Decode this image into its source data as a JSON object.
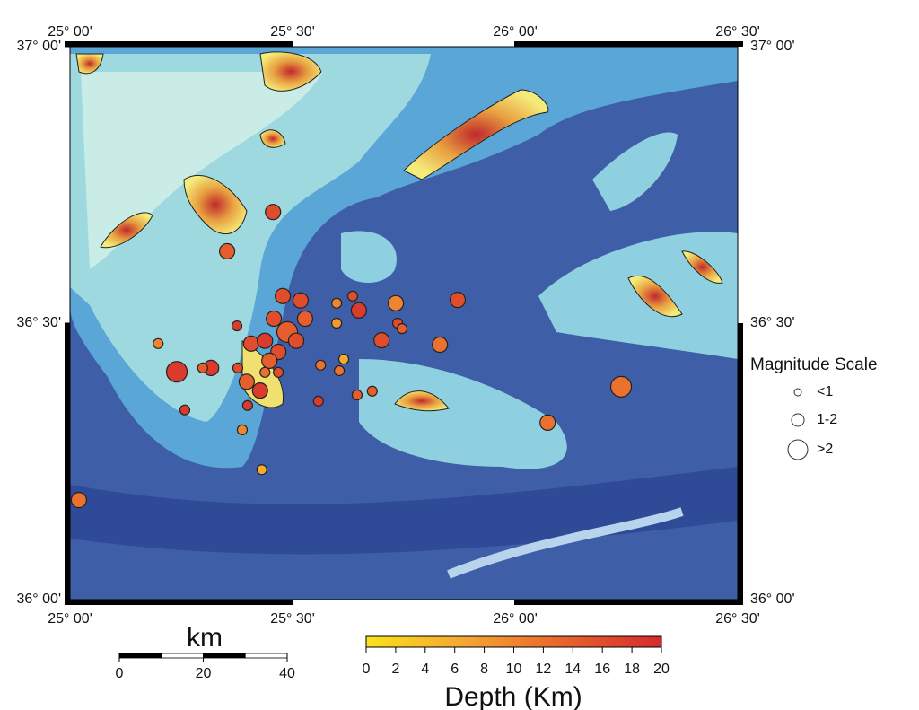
{
  "map": {
    "xlim": [
      25,
      26.5
    ],
    "ylim": [
      36,
      37
    ],
    "xticks": [
      {
        "value": 25,
        "label": "25° 00'"
      },
      {
        "value": 25.5,
        "label": "25° 30'"
      },
      {
        "value": 26,
        "label": "26° 00'"
      },
      {
        "value": 26.5,
        "label": "26° 30'"
      }
    ],
    "yticks": [
      {
        "value": 37,
        "label": "37° 00'"
      },
      {
        "value": 36.5,
        "label": "36° 30'"
      },
      {
        "value": 36,
        "label": "36° 00'"
      }
    ],
    "events": {
      "lon": [
        25.456,
        25.353,
        25.198,
        25.24,
        25.317,
        25.298,
        25.258,
        25.387,
        25.431,
        25.02,
        25.375,
        25.407,
        25.377,
        25.397,
        25.427,
        25.399,
        25.488,
        25.458,
        25.438,
        25.468,
        25.448,
        25.438,
        25.468,
        25.518,
        25.528,
        25.508,
        25.558,
        25.563,
        25.599,
        25.599,
        25.615,
        25.605,
        25.635,
        25.649,
        25.645,
        25.679,
        25.7,
        25.732,
        25.736,
        25.746,
        25.831,
        25.871,
        26.073,
        26.238,
        25.478
      ],
      "lat": [
        36.701,
        36.63,
        36.463,
        36.412,
        36.419,
        36.419,
        36.343,
        36.307,
        36.235,
        36.18,
        36.495,
        36.463,
        36.419,
        36.394,
        36.378,
        36.351,
        36.484,
        36.508,
        36.468,
        36.448,
        36.432,
        36.411,
        36.411,
        36.541,
        36.508,
        36.468,
        36.359,
        36.424,
        36.536,
        36.5,
        36.435,
        36.414,
        36.549,
        36.523,
        36.37,
        36.377,
        36.469,
        36.536,
        36.5,
        36.49,
        36.461,
        36.542,
        36.32,
        36.385,
        36.549
      ],
      "depth": [
        16,
        14,
        10,
        18,
        18,
        14,
        18,
        10,
        6,
        12,
        18,
        16,
        16,
        14,
        18,
        18,
        14,
        16,
        18,
        16,
        14,
        12,
        16,
        16,
        14,
        16,
        18,
        12,
        10,
        8,
        6,
        12,
        16,
        18,
        14,
        14,
        16,
        10,
        16,
        14,
        12,
        16,
        12,
        12,
        16
      ],
      "magnitude": [
        1.5,
        1.5,
        0.5,
        2.5,
        1.5,
        0.5,
        0.5,
        0.5,
        0.5,
        1.5,
        0.5,
        1.5,
        0.5,
        1.5,
        1.5,
        0.5,
        2.5,
        1.5,
        1.5,
        1.5,
        1.5,
        0.5,
        0.5,
        1.5,
        1.5,
        1.5,
        0.5,
        0.5,
        0.5,
        0.5,
        0.5,
        0.5,
        0.5,
        1.5,
        0.5,
        0.5,
        1.5,
        1.5,
        0.5,
        0.5,
        1.5,
        1.5,
        1.5,
        2.5,
        1.5
      ]
    },
    "legend": {
      "title": "Magnitude Scale",
      "items": [
        "<1",
        "1-2",
        ">2"
      ]
    },
    "scale_bar": {
      "unit": "km",
      "range": [
        0,
        40
      ],
      "ticks": [
        0,
        20,
        40
      ]
    },
    "colorbar": {
      "title": "Depth (Km)",
      "range": [
        0,
        20
      ],
      "ticks": [
        0,
        2,
        4,
        6,
        8,
        10,
        12,
        14,
        16,
        18,
        20
      ],
      "colors": [
        "#f9e21c",
        "#f5a632",
        "#e8642d",
        "#d52a2c"
      ]
    }
  }
}
